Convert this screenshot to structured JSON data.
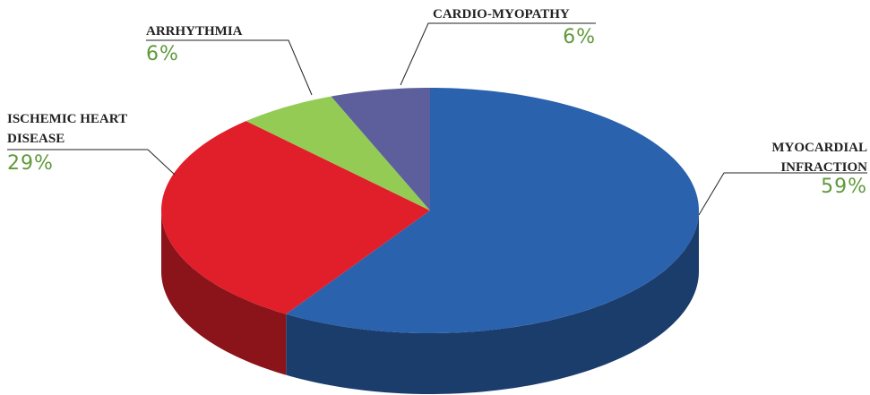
{
  "chart_data": {
    "type": "pie",
    "categories": [
      "MYOCARDIAL INFRACTION",
      "ISCHEMIC HEART DISEASE",
      "ARRHYTHMIA",
      "CARDIO-MYOPATHY"
    ],
    "values": [
      59,
      29,
      6,
      6
    ],
    "value_labels": [
      "59%",
      "29%",
      "6%",
      "6%"
    ],
    "colors": [
      "#2a62ae",
      "#e01f2a",
      "#94cb55",
      "#5c5f9c"
    ]
  }
}
